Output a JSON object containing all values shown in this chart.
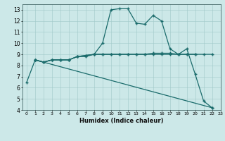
{
  "title": "",
  "xlabel": "Humidex (Indice chaleur)",
  "bg_color": "#cce8e8",
  "line_color": "#1a6b6b",
  "xlim": [
    -0.5,
    23
  ],
  "ylim": [
    4,
    13.5
  ],
  "xticks": [
    0,
    1,
    2,
    3,
    4,
    5,
    6,
    7,
    8,
    9,
    10,
    11,
    12,
    13,
    14,
    15,
    16,
    17,
    18,
    19,
    20,
    21,
    22,
    23
  ],
  "yticks": [
    4,
    5,
    6,
    7,
    8,
    9,
    10,
    11,
    12,
    13
  ],
  "curve1_x": [
    0,
    1,
    2,
    3,
    4,
    5,
    6,
    7,
    8,
    9,
    10,
    11,
    12,
    13,
    14,
    15,
    16,
    17,
    18,
    19,
    20,
    21,
    22
  ],
  "curve1_y": [
    6.5,
    8.5,
    8.3,
    8.5,
    8.5,
    8.5,
    8.8,
    8.8,
    9.0,
    10.0,
    13.0,
    13.1,
    13.1,
    11.8,
    11.7,
    12.5,
    12.0,
    9.5,
    9.0,
    9.5,
    7.2,
    4.8,
    4.2
  ],
  "curve2_x": [
    1,
    2,
    3,
    4,
    5,
    6,
    7,
    8,
    9,
    10,
    11,
    12,
    13,
    14,
    15,
    16,
    17,
    18,
    19,
    20,
    21,
    22
  ],
  "curve2_y": [
    8.5,
    8.3,
    8.5,
    8.5,
    8.5,
    8.8,
    8.9,
    9.0,
    9.0,
    9.0,
    9.0,
    9.0,
    9.0,
    9.0,
    9.1,
    9.1,
    9.1,
    9.0,
    9.0,
    9.0,
    9.0,
    9.0
  ],
  "curve3_x": [
    1,
    2,
    3,
    4,
    5,
    6,
    7,
    8,
    9,
    10,
    11,
    12,
    13,
    14,
    15,
    16,
    17,
    18,
    19,
    20
  ],
  "curve3_y": [
    8.5,
    8.3,
    8.5,
    8.5,
    8.5,
    8.8,
    8.9,
    9.0,
    9.0,
    9.0,
    9.0,
    9.0,
    9.0,
    9.0,
    9.0,
    9.0,
    9.0,
    9.0,
    9.0,
    9.0
  ],
  "curve4_x": [
    1,
    22
  ],
  "curve4_y": [
    8.5,
    4.2
  ]
}
